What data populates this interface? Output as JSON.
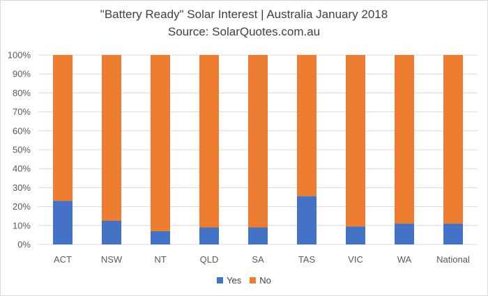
{
  "chart_data": {
    "type": "bar",
    "stacked": true,
    "title": "\"Battery Ready\" Solar Interest  |  Australia January 2018",
    "subtitle": "Source: SolarQuotes.com.au",
    "categories": [
      "ACT",
      "NSW",
      "NT",
      "QLD",
      "SA",
      "TAS",
      "VIC",
      "WA",
      "National"
    ],
    "series": [
      {
        "name": "Yes",
        "color": "#4472c4",
        "values": [
          23,
          12.5,
          7,
          9,
          9,
          25.5,
          9.5,
          11,
          11
        ]
      },
      {
        "name": "No",
        "color": "#ed7d31",
        "values": [
          77,
          87.5,
          93,
          91,
          91,
          74.5,
          90.5,
          89,
          89
        ]
      }
    ],
    "ylim": [
      0,
      100
    ],
    "yticks": [
      "0%",
      "10%",
      "20%",
      "30%",
      "40%",
      "50%",
      "60%",
      "70%",
      "80%",
      "90%",
      "100%"
    ],
    "grid": true,
    "legend_position": "bottom"
  }
}
